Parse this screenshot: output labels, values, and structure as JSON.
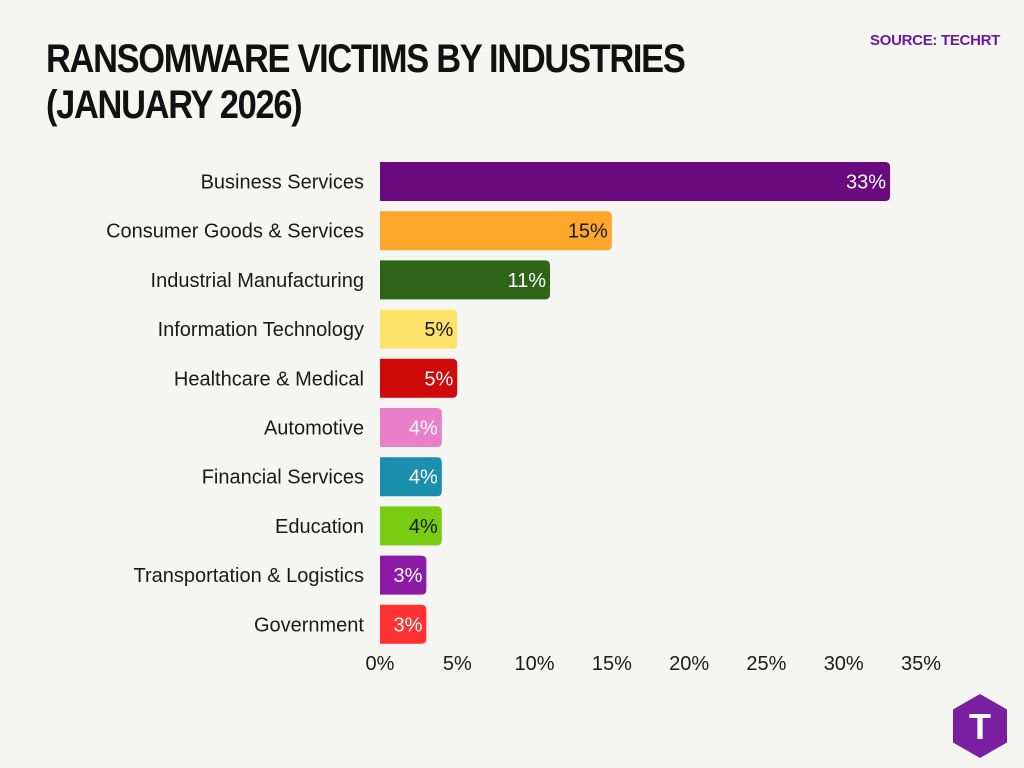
{
  "header": {
    "title_line1": "RANSOMWARE VICTIMS BY INDUSTRIES",
    "title_line2": "(JANUARY 2026)",
    "source": "SOURCE: TECHRT"
  },
  "colors": {
    "background": "#f5f5f1",
    "source_text": "#6a1b9a",
    "logo": "#7b1fa2"
  },
  "logo": {
    "icon": "techrt-hexagon-logo-icon",
    "letter": "T"
  },
  "chart_data": {
    "type": "bar",
    "orientation": "horizontal",
    "categories": [
      "Business Services",
      "Consumer Goods & Services",
      "Industrial Manufacturing",
      "Information Technology",
      "Healthcare & Medical",
      "Automotive",
      "Financial Services",
      "Education",
      "Transportation & Logistics",
      "Government"
    ],
    "values": [
      33,
      15,
      11,
      5,
      5,
      4,
      4,
      4,
      3,
      3
    ],
    "data_labels": [
      "33%",
      "15%",
      "11%",
      "5%",
      "5%",
      "4%",
      "4%",
      "4%",
      "3%",
      "3%"
    ],
    "bar_colors": [
      "#6a0a7e",
      "#fca62b",
      "#2e6417",
      "#fde26a",
      "#cf0a0a",
      "#ea7fc9",
      "#1a8fae",
      "#78cc12",
      "#8c1aa6",
      "#ff3131"
    ],
    "label_colors": [
      "#ffffff",
      "#1a1a1a",
      "#ffffff",
      "#1a1a1a",
      "#ffffff",
      "#ffffff",
      "#ffffff",
      "#1a1a1a",
      "#ffffff",
      "#ffffff"
    ],
    "xlim": [
      0,
      35
    ],
    "xticks": [
      0,
      5,
      10,
      15,
      20,
      25,
      30,
      35
    ],
    "xtick_labels": [
      "0%",
      "5%",
      "10%",
      "15%",
      "20%",
      "25%",
      "30%",
      "35%"
    ],
    "grid": false,
    "legend": "none"
  }
}
